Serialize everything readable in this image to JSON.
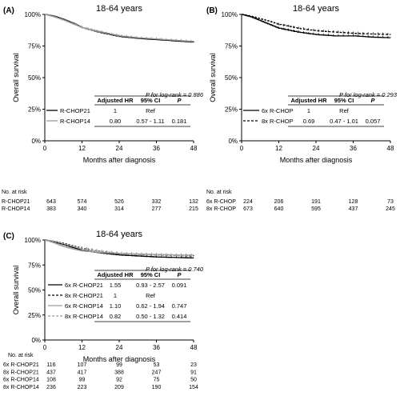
{
  "chart_data": [
    {
      "type": "line",
      "panel_label": "(A)",
      "title": "18-64 years",
      "xlabel": "Months after diagnosis",
      "ylabel": "Overall survival",
      "xlim": [
        0,
        48
      ],
      "ylim": [
        0,
        100
      ],
      "x_ticks": [
        0,
        12,
        24,
        36,
        48
      ],
      "y_ticks": [
        "0%",
        "25%",
        "50%",
        "75%",
        "100%"
      ],
      "logrank": "P for log-rank = 0.886",
      "table_headers": [
        "Adjusted HR",
        "95% CI",
        "P"
      ],
      "series": [
        {
          "name": "R-CHOP21",
          "color": "#000000",
          "dash": "solid",
          "hr": "1",
          "ci": "Ref",
          "p": "",
          "x": [
            0,
            3,
            6,
            9,
            12,
            18,
            24,
            30,
            36,
            42,
            48
          ],
          "y": [
            100,
            98.5,
            96,
            93,
            89.5,
            85.5,
            82.5,
            81,
            80,
            79,
            78
          ]
        },
        {
          "name": "R-CHOP14",
          "color": "#9a9a9a",
          "dash": "solid",
          "hr": "0.80",
          "ci": "0.57 - 1.11",
          "p": "0.181",
          "x": [
            0,
            3,
            6,
            9,
            12,
            18,
            24,
            30,
            36,
            42,
            48
          ],
          "y": [
            100,
            98,
            95.5,
            92.5,
            89.5,
            86,
            83,
            81.5,
            80.5,
            79.5,
            78.5
          ]
        }
      ],
      "at_risk_title": "No. at risk",
      "at_risk": [
        {
          "label": "R-CHOP21",
          "values": [
            "643",
            "574",
            "526",
            "332",
            "132"
          ]
        },
        {
          "label": "R-CHOP14",
          "values": [
            "383",
            "340",
            "314",
            "277",
            "215"
          ]
        }
      ]
    },
    {
      "type": "line",
      "panel_label": "(B)",
      "title": "18-64 years",
      "xlabel": "Months after diagnosis",
      "ylabel": "Overall survival",
      "xlim": [
        0,
        48
      ],
      "ylim": [
        0,
        100
      ],
      "x_ticks": [
        0,
        12,
        24,
        36,
        48
      ],
      "y_ticks": [
        "0%",
        "25%",
        "50%",
        "75%",
        "100%"
      ],
      "logrank": "P for log-rank = 0.293",
      "table_headers": [
        "Adjusted HR",
        "95% CI",
        "P"
      ],
      "series": [
        {
          "name": "6x R-CHOP",
          "color": "#000000",
          "dash": "solid",
          "hr": "1",
          "ci": "Ref",
          "p": "",
          "x": [
            0,
            3,
            6,
            9,
            12,
            18,
            24,
            30,
            36,
            42,
            48
          ],
          "y": [
            100,
            98,
            95,
            92,
            89,
            86,
            84,
            83,
            83,
            82,
            81.5
          ]
        },
        {
          "name": "8x R-CHOP",
          "color": "#000000",
          "dash": "dashed",
          "hr": "0.69",
          "ci": "0.47 - 1.01",
          "p": "0.057",
          "x": [
            0,
            3,
            6,
            9,
            12,
            18,
            24,
            30,
            36,
            42,
            48
          ],
          "y": [
            100,
            98.5,
            96.5,
            94.5,
            92,
            89,
            87,
            86,
            85,
            84.5,
            84
          ]
        }
      ],
      "at_risk_title": "No. at risk",
      "at_risk": [
        {
          "label": "6x R-CHOP",
          "values": [
            "224",
            "206",
            "191",
            "128",
            "73"
          ]
        },
        {
          "label": "8x R-CHOP",
          "values": [
            "673",
            "640",
            "595",
            "437",
            "245"
          ]
        }
      ]
    },
    {
      "type": "line",
      "panel_label": "(C)",
      "title": "18-64 years",
      "xlabel": "Months after diagnosis",
      "ylabel": "Overall survival",
      "xlim": [
        0,
        48
      ],
      "ylim": [
        0,
        100
      ],
      "x_ticks": [
        0,
        12,
        24,
        36,
        48
      ],
      "y_ticks": [
        "0%",
        "25%",
        "50%",
        "75%",
        "100%"
      ],
      "logrank": "P for log-rank = 0.740",
      "table_headers": [
        "Adjusted HR",
        "95% CI",
        "P"
      ],
      "series": [
        {
          "name": "6x R-CHOP21",
          "color": "#000000",
          "dash": "solid",
          "hr": "1.55",
          "ci": "0.93 - 2.57",
          "p": "0.091",
          "x": [
            0,
            3,
            6,
            9,
            12,
            18,
            24,
            30,
            36,
            42,
            48
          ],
          "y": [
            100,
            98,
            95.5,
            92.5,
            89.5,
            87,
            85,
            84,
            83,
            82.5,
            82
          ]
        },
        {
          "name": "8x R-CHOP21",
          "color": "#000000",
          "dash": "dashed",
          "hr": "1",
          "ci": "Ref",
          "p": "",
          "x": [
            0,
            3,
            6,
            9,
            12,
            18,
            24,
            30,
            36,
            42,
            48
          ],
          "y": [
            100,
            98.5,
            96.5,
            94,
            91.5,
            88.5,
            86.5,
            85.5,
            85,
            84.5,
            84
          ]
        },
        {
          "name": "6x R-CHOP14",
          "color": "#9a9a9a",
          "dash": "solid",
          "hr": "1.10",
          "ci": "0.62 - 1.94",
          "p": "0.747",
          "x": [
            0,
            3,
            6,
            9,
            12,
            18,
            24,
            30,
            36,
            42,
            48
          ],
          "y": [
            100,
            97,
            93.5,
            91,
            89,
            87.5,
            86.5,
            86,
            85.5,
            85,
            85
          ]
        },
        {
          "name": "8x R-CHOP14",
          "color": "#9a9a9a",
          "dash": "dashed",
          "hr": "0.82",
          "ci": "0.50 - 1.32",
          "p": "0.414",
          "x": [
            0,
            3,
            6,
            9,
            12,
            18,
            24,
            30,
            36,
            42,
            48
          ],
          "y": [
            100,
            98.5,
            96,
            93.5,
            91,
            88.5,
            86.5,
            85.5,
            85,
            84.5,
            84.5
          ]
        }
      ],
      "at_risk_title": "No. at risk",
      "at_risk": [
        {
          "label": "6x R-CHOP21",
          "values": [
            "116",
            "107",
            "99",
            "53",
            "23"
          ]
        },
        {
          "label": "8x R-CHOP21",
          "values": [
            "437",
            "417",
            "388",
            "247",
            "91"
          ]
        },
        {
          "label": "6x R-CHOP14",
          "values": [
            "108",
            "99",
            "92",
            "75",
            "50"
          ]
        },
        {
          "label": "8x R-CHOP14",
          "values": [
            "236",
            "223",
            "209",
            "190",
            "154"
          ]
        }
      ]
    }
  ]
}
